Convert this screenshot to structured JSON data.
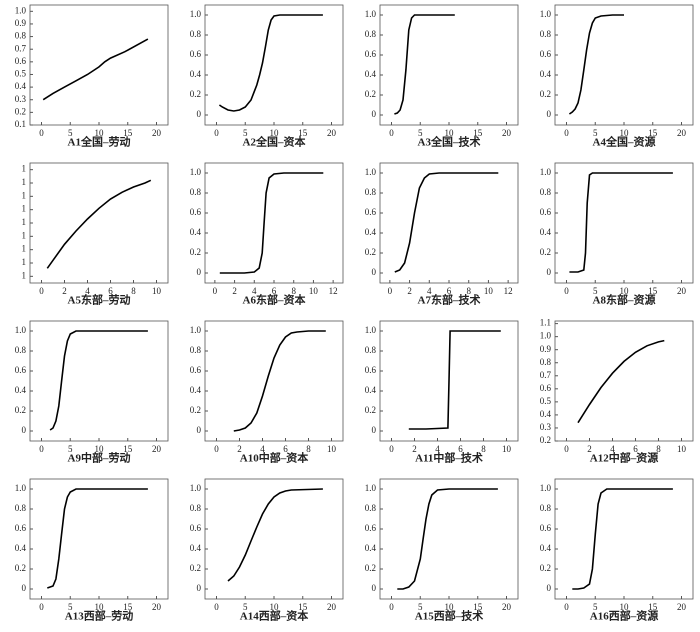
{
  "chart_data": [
    {
      "type": "line",
      "title": "A1全国–劳动",
      "x": [
        0.3,
        2,
        4,
        6,
        8,
        10,
        11,
        12,
        14.5,
        18.5
      ],
      "values": [
        0.3,
        0.35,
        0.4,
        0.45,
        0.5,
        0.56,
        0.6,
        0.63,
        0.68,
        0.78
      ],
      "xlim": [
        -2,
        22
      ],
      "xticks": [
        0,
        5,
        10,
        15,
        20
      ],
      "ylim": [
        0.1,
        1.05
      ],
      "yticks": [
        0.1,
        0.2,
        0.3,
        0.4,
        0.5,
        0.6,
        0.7,
        0.8,
        0.9,
        {
          "value": 1,
          "label": "1.0"
        }
      ],
      "color": "#000000"
    },
    {
      "type": "line",
      "title": "A2全国–资本",
      "x": [
        0.5,
        1,
        2,
        3,
        4,
        5,
        6,
        7,
        7.5,
        8,
        8.5,
        9,
        9.5,
        10,
        11,
        13,
        18.5
      ],
      "values": [
        0.1,
        0.08,
        0.05,
        0.04,
        0.05,
        0.08,
        0.15,
        0.3,
        0.4,
        0.52,
        0.68,
        0.85,
        0.95,
        0.99,
        1,
        1,
        1
      ],
      "xlim": [
        -2,
        22
      ],
      "xticks": [
        0,
        5,
        10,
        15,
        20
      ],
      "ylim": [
        -0.1,
        1.1
      ],
      "yticks": [
        0,
        0.2,
        0.4,
        0.6,
        0.8,
        {
          "value": 1,
          "label": "1.0"
        }
      ],
      "color": "#000000"
    },
    {
      "type": "line",
      "title": "A3全国–技术",
      "x": [
        0.5,
        1,
        1.5,
        2,
        2.5,
        3,
        3.5,
        4,
        5,
        7,
        9,
        11
      ],
      "values": [
        0.01,
        0.02,
        0.05,
        0.15,
        0.45,
        0.85,
        0.97,
        1,
        1,
        1,
        1,
        1
      ],
      "xlim": [
        -2,
        22
      ],
      "xticks": [
        0,
        5,
        10,
        15,
        20
      ],
      "ylim": [
        -0.1,
        1.1
      ],
      "yticks": [
        0,
        0.2,
        0.4,
        0.6,
        0.8,
        {
          "value": 1,
          "label": "1.0"
        }
      ],
      "color": "#000000"
    },
    {
      "type": "line",
      "title": "A4全国–资源",
      "x": [
        0.5,
        1,
        1.5,
        2,
        2.5,
        3,
        3.5,
        4,
        4.5,
        5,
        6,
        8,
        10
      ],
      "values": [
        0.01,
        0.03,
        0.06,
        0.12,
        0.25,
        0.45,
        0.65,
        0.82,
        0.92,
        0.97,
        0.99,
        1,
        1
      ],
      "xlim": [
        -2,
        22
      ],
      "xticks": [
        0,
        5,
        10,
        15,
        20
      ],
      "ylim": [
        -0.1,
        1.1
      ],
      "yticks": [
        0,
        0.2,
        0.4,
        0.6,
        0.8,
        {
          "value": 1,
          "label": "1.0"
        }
      ],
      "color": "#000000"
    },
    {
      "type": "line",
      "title": "A5东部–劳动",
      "x": [
        0.5,
        1,
        2,
        3,
        4,
        5,
        6,
        7,
        8,
        9,
        9.5
      ],
      "values": [
        0.66,
        0.72,
        0.84,
        0.94,
        1.03,
        1.11,
        1.18,
        1.23,
        1.27,
        1.3,
        1.32
      ],
      "xlim": [
        -1,
        11
      ],
      "xticks": [
        0,
        2,
        4,
        6,
        8,
        10
      ],
      "ylim": [
        0.55,
        1.45
      ],
      "yticks": [
        {
          "value": 0.6,
          "label": "1"
        },
        {
          "value": 0.7,
          "label": "1"
        },
        {
          "value": 0.8,
          "label": "1"
        },
        {
          "value": 0.9,
          "label": "1"
        },
        1,
        {
          "value": 1.1,
          "label": "1"
        },
        {
          "value": 1.2,
          "label": "1"
        },
        {
          "value": 1.3,
          "label": "1"
        },
        {
          "value": 1.4,
          "label": "1"
        }
      ],
      "color": "#000000"
    },
    {
      "type": "line",
      "title": "A6东部–资本",
      "x": [
        0.5,
        2,
        3,
        4,
        4.5,
        4.8,
        5,
        5.2,
        5.5,
        6,
        7,
        9,
        11
      ],
      "values": [
        0,
        0,
        0,
        0.01,
        0.05,
        0.2,
        0.5,
        0.8,
        0.95,
        0.99,
        1,
        1,
        1
      ],
      "xlim": [
        -1,
        13
      ],
      "xticks": [
        0,
        2,
        4,
        6,
        8,
        10,
        12
      ],
      "ylim": [
        -0.1,
        1.1
      ],
      "yticks": [
        0,
        0.2,
        0.4,
        0.6,
        0.8,
        {
          "value": 1,
          "label": "1.0"
        }
      ],
      "color": "#000000"
    },
    {
      "type": "line",
      "title": "A7东部–技术",
      "x": [
        0.5,
        1,
        1.5,
        2,
        2.5,
        3,
        3.5,
        4,
        5,
        7,
        9,
        11
      ],
      "values": [
        0.01,
        0.03,
        0.1,
        0.3,
        0.6,
        0.85,
        0.95,
        0.99,
        1,
        1,
        1,
        1
      ],
      "xlim": [
        -1,
        13
      ],
      "xticks": [
        0,
        2,
        4,
        6,
        8,
        10,
        12
      ],
      "ylim": [
        -0.1,
        1.1
      ],
      "yticks": [
        0,
        0.2,
        0.4,
        0.6,
        0.8,
        {
          "value": 1,
          "label": "1.0"
        }
      ],
      "color": "#000000"
    },
    {
      "type": "line",
      "title": "A8东部–资源",
      "x": [
        0.5,
        2,
        3,
        3.3,
        3.6,
        4,
        4.5,
        6,
        9,
        11,
        18.5
      ],
      "values": [
        0.01,
        0.01,
        0.03,
        0.2,
        0.7,
        0.98,
        1,
        1,
        1,
        1,
        1
      ],
      "xlim": [
        -2,
        22
      ],
      "xticks": [
        0,
        5,
        10,
        15,
        20
      ],
      "ylim": [
        -0.1,
        1.1
      ],
      "yticks": [
        0,
        0.2,
        0.4,
        0.6,
        0.8,
        {
          "value": 1,
          "label": "1.0"
        }
      ],
      "color": "#000000"
    },
    {
      "type": "line",
      "title": "A9中部–劳动",
      "x": [
        1.5,
        2,
        2.5,
        3,
        3.5,
        4,
        4.5,
        5,
        6,
        8,
        10,
        18.5
      ],
      "values": [
        0.01,
        0.03,
        0.1,
        0.25,
        0.5,
        0.75,
        0.9,
        0.97,
        1,
        1,
        1,
        1
      ],
      "xlim": [
        -2,
        22
      ],
      "xticks": [
        0,
        5,
        10,
        15,
        20
      ],
      "ylim": [
        -0.1,
        1.1
      ],
      "yticks": [
        0,
        0.2,
        0.4,
        0.6,
        0.8,
        {
          "value": 1,
          "label": "1.0"
        }
      ],
      "color": "#000000"
    },
    {
      "type": "line",
      "title": "A10中部–资本",
      "x": [
        1.5,
        2,
        2.5,
        3,
        3.5,
        4,
        4.5,
        5,
        5.5,
        6,
        6.5,
        7,
        8,
        9.5
      ],
      "values": [
        0,
        0.01,
        0.03,
        0.08,
        0.18,
        0.35,
        0.55,
        0.73,
        0.86,
        0.94,
        0.98,
        0.99,
        1,
        1
      ],
      "xlim": [
        -1,
        11
      ],
      "xticks": [
        0,
        2,
        4,
        6,
        8,
        10
      ],
      "ylim": [
        -0.1,
        1.1
      ],
      "yticks": [
        0,
        0.2,
        0.4,
        0.6,
        0.8,
        {
          "value": 1,
          "label": "1.0"
        }
      ],
      "color": "#000000"
    },
    {
      "type": "line",
      "title": "A11中部–技术",
      "x": [
        1.5,
        3,
        4.9,
        5,
        5.1,
        6,
        8,
        9.5
      ],
      "values": [
        0.02,
        0.02,
        0.03,
        0.5,
        1,
        1,
        1,
        1
      ],
      "xlim": [
        -1,
        11
      ],
      "xticks": [
        0,
        2,
        4,
        6,
        8,
        10
      ],
      "ylim": [
        -0.1,
        1.1
      ],
      "yticks": [
        0,
        0.2,
        0.4,
        0.6,
        0.8,
        {
          "value": 1,
          "label": "1.0"
        }
      ],
      "color": "#000000"
    },
    {
      "type": "line",
      "title": "A12中部–资源",
      "x": [
        1,
        2,
        3,
        4,
        5,
        6,
        7,
        8,
        8.5
      ],
      "values": [
        0.34,
        0.48,
        0.61,
        0.72,
        0.81,
        0.88,
        0.93,
        0.96,
        0.97
      ],
      "xlim": [
        -1,
        11
      ],
      "xticks": [
        0,
        2,
        4,
        6,
        8,
        10
      ],
      "ylim": [
        0.2,
        1.12
      ],
      "yticks": [
        0.2,
        0.3,
        0.4,
        0.5,
        0.6,
        0.7,
        0.8,
        0.9,
        {
          "value": 1,
          "label": "1.0"
        },
        1.1
      ],
      "color": "#000000"
    },
    {
      "type": "line",
      "title": "A13西部–劳动",
      "x": [
        1,
        2,
        2.5,
        3,
        3.5,
        4,
        4.5,
        5,
        6,
        8,
        12,
        18.5
      ],
      "values": [
        0.01,
        0.03,
        0.1,
        0.3,
        0.55,
        0.8,
        0.92,
        0.97,
        1,
        1,
        1,
        1
      ],
      "xlim": [
        -2,
        22
      ],
      "xticks": [
        0,
        5,
        10,
        15,
        20
      ],
      "ylim": [
        -0.1,
        1.1
      ],
      "yticks": [
        0,
        0.2,
        0.4,
        0.6,
        0.8,
        {
          "value": 1,
          "label": "1.0"
        }
      ],
      "color": "#000000"
    },
    {
      "type": "line",
      "title": "A14西部–资本",
      "x": [
        2,
        3,
        4,
        5,
        6,
        7,
        8,
        9,
        10,
        11,
        12,
        13,
        18.5
      ],
      "values": [
        0.08,
        0.13,
        0.22,
        0.34,
        0.48,
        0.62,
        0.75,
        0.85,
        0.92,
        0.96,
        0.98,
        0.99,
        1
      ],
      "xlim": [
        -2,
        22
      ],
      "xticks": [
        0,
        5,
        10,
        15,
        20
      ],
      "ylim": [
        -0.1,
        1.1
      ],
      "yticks": [
        0,
        0.2,
        0.4,
        0.6,
        0.8,
        {
          "value": 1,
          "label": "1.0"
        }
      ],
      "color": "#000000"
    },
    {
      "type": "line",
      "title": "A15西部–技术",
      "x": [
        1,
        2,
        3,
        4,
        5,
        5.5,
        6,
        6.5,
        7,
        8,
        10,
        13,
        18.5
      ],
      "values": [
        0,
        0,
        0.02,
        0.08,
        0.3,
        0.5,
        0.7,
        0.85,
        0.94,
        0.99,
        1,
        1,
        1
      ],
      "xlim": [
        -2,
        22
      ],
      "xticks": [
        0,
        5,
        10,
        15,
        20
      ],
      "ylim": [
        -0.1,
        1.1
      ],
      "yticks": [
        0,
        0.2,
        0.4,
        0.6,
        0.8,
        {
          "value": 1,
          "label": "1.0"
        }
      ],
      "color": "#000000"
    },
    {
      "type": "line",
      "title": "A16西部–资源",
      "x": [
        1,
        2,
        3,
        4,
        4.5,
        5,
        5.5,
        6,
        7,
        9,
        13,
        18.5
      ],
      "values": [
        0,
        0,
        0.01,
        0.05,
        0.2,
        0.55,
        0.85,
        0.96,
        1,
        1,
        1,
        1
      ],
      "xlim": [
        -2,
        22
      ],
      "xticks": [
        0,
        5,
        10,
        15,
        20
      ],
      "ylim": [
        -0.1,
        1.1
      ],
      "yticks": [
        0,
        0.2,
        0.4,
        0.6,
        0.8,
        {
          "value": 1,
          "label": "1.0"
        }
      ],
      "color": "#000000"
    }
  ]
}
